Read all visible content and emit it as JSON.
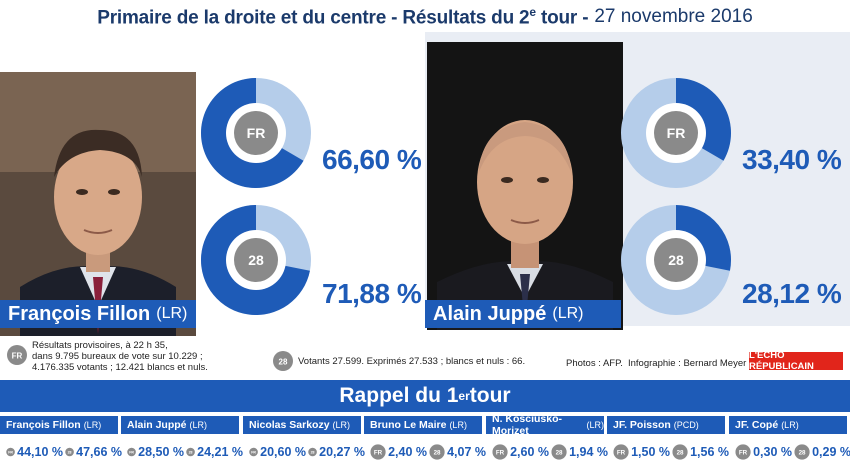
{
  "header": {
    "title_part1": "Primaire de la droite et du centre - Résultats du 2",
    "title_sup": "e",
    "title_part2": " tour -",
    "date": "27 novembre 2016"
  },
  "candidates": [
    {
      "name": "François Fillon",
      "party": "(LR)",
      "fr_label": "66,60 %",
      "dep_label": "71,88 %"
    },
    {
      "name": "Alain Juppé",
      "party": "(LR)",
      "fr_label": "33,40 %",
      "dep_label": "28,12 %"
    }
  ],
  "icons": {
    "fr": "FR",
    "dep": "28"
  },
  "info": {
    "fr_line1": "Résultats provisoires, à 22 h 35,",
    "fr_line2": "dans 9.795 bureaux de vote sur 10.229 ;",
    "fr_line3": "4.176.335 votants ; 12.421 blancs et nuls.",
    "dep_text": "Votants 27.599. Exprimés 27.533 ; blancs et nuls : 66.",
    "photos": "Photos : AFP.",
    "infographie": "Infographie : Bernard Meyer",
    "brand": "L'ÉCHO RÉPUBLICAIN"
  },
  "rappel": {
    "title": "Rappel du 1",
    "sup": "er",
    "title_end": " tour"
  },
  "chart_data": [
    {
      "type": "pie",
      "title": "",
      "subset": "FR",
      "categories": [
        "François Fillon",
        "Alain Juppé"
      ],
      "values": [
        66.6,
        33.4
      ]
    },
    {
      "type": "pie",
      "title": "",
      "subset": "28",
      "categories": [
        "François Fillon",
        "Alain Juppé"
      ],
      "values": [
        71.88,
        28.12
      ]
    },
    {
      "type": "table",
      "title": "Rappel du 1er tour",
      "columns": [
        "FR",
        "28"
      ],
      "rows": [
        {
          "name": "François Fillon",
          "party": "(LR)",
          "fr": "44,10 %",
          "dep": "47,66 %"
        },
        {
          "name": "Alain Juppé",
          "party": "(LR)",
          "fr": "28,50 %",
          "dep": "24,21 %"
        },
        {
          "name": "Nicolas Sarkozy",
          "party": "(LR)",
          "fr": "20,60 %",
          "dep": "20,27 %"
        },
        {
          "name": "Bruno Le Maire",
          "party": "(LR)",
          "fr": "2,40 %",
          "dep": "4,07 %"
        },
        {
          "name": "N. Kosciusko-Morizet",
          "party": "(LR)",
          "fr": "2,60 %",
          "dep": "1,94 %"
        },
        {
          "name": "JF. Poisson",
          "party": "(PCD)",
          "fr": "1,50 %",
          "dep": "1,56 %"
        },
        {
          "name": "JF. Copé",
          "party": "(LR)",
          "fr": "0,30 %",
          "dep": "0,29 %"
        }
      ]
    }
  ],
  "colors": {
    "blue": "#1e5bb7",
    "light_blue": "#b5cdea",
    "grey_icon": "#8a8a8a",
    "brand_red": "#e1251b"
  }
}
